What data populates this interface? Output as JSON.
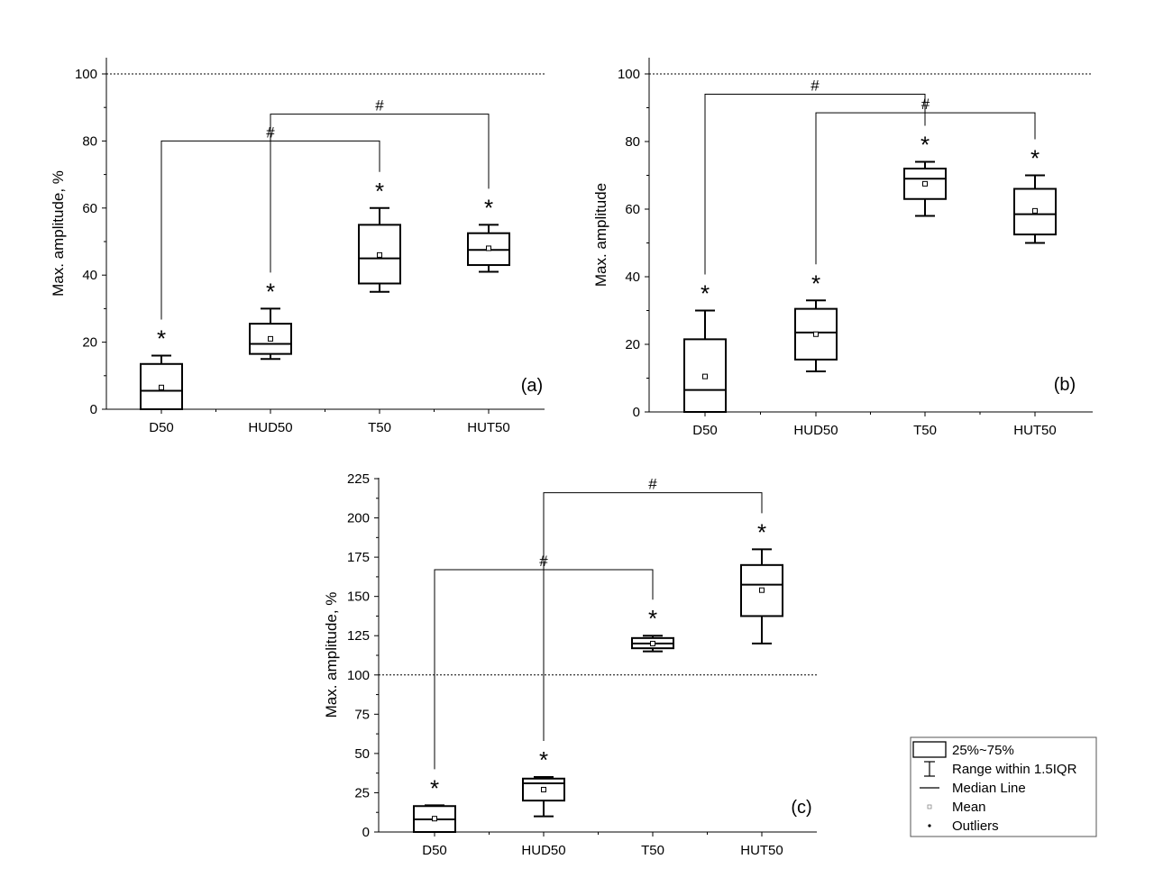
{
  "chart_data": [
    {
      "type": "box",
      "panel": "(a)",
      "categories": [
        "D50",
        "HUD50",
        "T50",
        "HUT50"
      ],
      "ylabel": "Max. amplitude, %",
      "ylim": [
        0,
        100
      ],
      "yticks": [
        0,
        20,
        40,
        60,
        80,
        100
      ],
      "reference_line": 100,
      "boxes": [
        {
          "q1": 0,
          "median": 5.5,
          "q3": 13.5,
          "whisker_low": 0,
          "whisker_high": 16,
          "mean": 6.5
        },
        {
          "q1": 16.5,
          "median": 19.5,
          "q3": 25.5,
          "whisker_low": 15,
          "whisker_high": 30,
          "mean": 21
        },
        {
          "q1": 37.5,
          "median": 45,
          "q3": 55,
          "whisker_low": 35,
          "whisker_high": 60,
          "mean": 46
        },
        {
          "q1": 43,
          "median": 47.5,
          "q3": 52.5,
          "whisker_low": 41,
          "whisker_high": 55,
          "mean": 48
        }
      ],
      "marks": [
        "*",
        "*",
        "*",
        "*"
      ],
      "brackets": [
        {
          "from": 0,
          "to": 2,
          "level": 80,
          "label": "#"
        },
        {
          "from": 1,
          "to": 3,
          "level": 88,
          "label": "#"
        }
      ]
    },
    {
      "type": "box",
      "panel": "(b)",
      "categories": [
        "D50",
        "HUD50",
        "T50",
        "HUT50"
      ],
      "ylabel": "Max. amplitude",
      "ylim": [
        0,
        100
      ],
      "yticks": [
        0,
        20,
        40,
        60,
        80,
        100
      ],
      "reference_line": 100,
      "boxes": [
        {
          "q1": 0,
          "median": 6.5,
          "q3": 21.5,
          "whisker_low": 0,
          "whisker_high": 30,
          "mean": 10.5
        },
        {
          "q1": 15.5,
          "median": 23.5,
          "q3": 30.5,
          "whisker_low": 12,
          "whisker_high": 33,
          "mean": 23
        },
        {
          "q1": 63,
          "median": 69,
          "q3": 72,
          "whisker_low": 58,
          "whisker_high": 74,
          "mean": 67.5
        },
        {
          "q1": 52.5,
          "median": 58.5,
          "q3": 66,
          "whisker_low": 50,
          "whisker_high": 70,
          "mean": 59.5
        }
      ],
      "marks": [
        "*",
        "*",
        "*",
        "*"
      ],
      "brackets": [
        {
          "from": 0,
          "to": 2,
          "level": 94,
          "label": "#"
        },
        {
          "from": 1,
          "to": 3,
          "level": 88.5,
          "label": "#"
        }
      ]
    },
    {
      "type": "box",
      "panel": "(c)",
      "categories": [
        "D50",
        "HUD50",
        "T50",
        "HUT50"
      ],
      "ylabel": "Max. amplitude, %",
      "ylim": [
        0,
        225
      ],
      "yticks": [
        0,
        25,
        50,
        75,
        100,
        125,
        150,
        175,
        200,
        225
      ],
      "reference_line": 100,
      "boxes": [
        {
          "q1": 0,
          "median": 8,
          "q3": 16.5,
          "whisker_low": 0,
          "whisker_high": 17,
          "mean": 8.5
        },
        {
          "q1": 20,
          "median": 31,
          "q3": 34,
          "whisker_low": 10,
          "whisker_high": 35,
          "mean": 27
        },
        {
          "q1": 117,
          "median": 120,
          "q3": 123.5,
          "whisker_low": 115,
          "whisker_high": 125,
          "mean": 120
        },
        {
          "q1": 137.5,
          "median": 157.5,
          "q3": 170,
          "whisker_low": 120,
          "whisker_high": 180,
          "mean": 154
        }
      ],
      "marks": [
        "*",
        "*",
        "*",
        "*"
      ],
      "brackets": [
        {
          "from": 0,
          "to": 2,
          "level": 167,
          "label": "#"
        },
        {
          "from": 1,
          "to": 3,
          "level": 216,
          "label": "#"
        }
      ]
    }
  ],
  "legend": {
    "items": [
      "25%~75%",
      "Range within 1.5IQR",
      "Median Line",
      "Mean",
      "Outliers"
    ]
  }
}
